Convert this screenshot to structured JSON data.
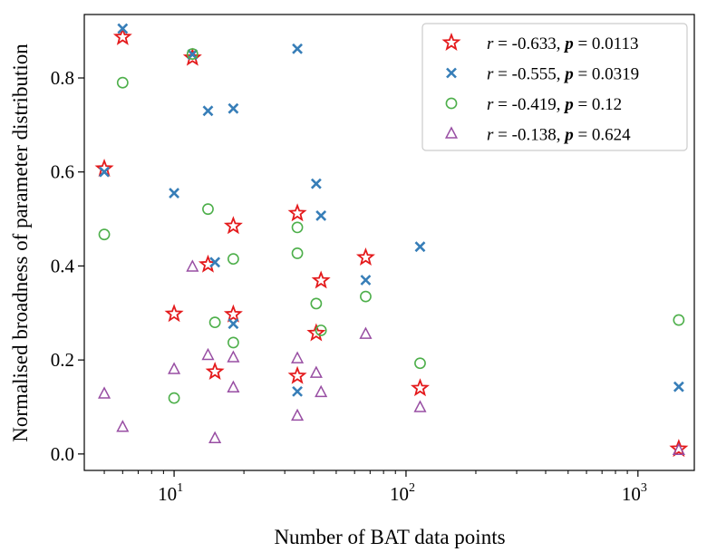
{
  "chart_data": {
    "type": "scatter",
    "xscale": "log",
    "xlabel": "Number of BAT data points",
    "ylabel": "Normalised broadness of parameter distribution",
    "xlim": [
      4.1,
      1750
    ],
    "ylim": [
      -0.035,
      0.935
    ],
    "xticks": [
      {
        "value": 10,
        "base": "10",
        "exp": "1"
      },
      {
        "value": 100,
        "base": "10",
        "exp": "2"
      },
      {
        "value": 1000,
        "base": "10",
        "exp": "3"
      }
    ],
    "yticks": [
      {
        "value": 0.0,
        "label": "0.0"
      },
      {
        "value": 0.2,
        "label": "0.2"
      },
      {
        "value": 0.4,
        "label": "0.4"
      },
      {
        "value": 0.6,
        "label": "0.6"
      },
      {
        "value": 0.8,
        "label": "0.8"
      }
    ],
    "legend_position": "top-right",
    "series": [
      {
        "name": "r = -0.633, p = 0.0113",
        "r": "-0.633",
        "p": "0.0113",
        "marker": "star",
        "color": "#e41a1c",
        "points": [
          [
            5,
            0.607
          ],
          [
            6,
            0.887
          ],
          [
            10,
            0.298
          ],
          [
            12,
            0.843
          ],
          [
            14,
            0.403
          ],
          [
            15,
            0.175
          ],
          [
            18,
            0.485
          ],
          [
            18,
            0.297
          ],
          [
            34,
            0.512
          ],
          [
            34,
            0.166
          ],
          [
            41,
            0.257
          ],
          [
            43,
            0.369
          ],
          [
            67,
            0.418
          ],
          [
            115,
            0.14
          ],
          [
            1500,
            0.011
          ]
        ]
      },
      {
        "name": "r = -0.555, p = 0.0319",
        "r": "-0.555",
        "p": "0.0319",
        "marker": "x",
        "color": "#377eb8",
        "points": [
          [
            5,
            0.6
          ],
          [
            6,
            0.905
          ],
          [
            10,
            0.555
          ],
          [
            12,
            0.85
          ],
          [
            14,
            0.73
          ],
          [
            15,
            0.408
          ],
          [
            18,
            0.735
          ],
          [
            18,
            0.277
          ],
          [
            34,
            0.862
          ],
          [
            34,
            0.133
          ],
          [
            41,
            0.575
          ],
          [
            43,
            0.507
          ],
          [
            67,
            0.37
          ],
          [
            115,
            0.441
          ],
          [
            1500,
            0.143
          ]
        ]
      },
      {
        "name": "r = -0.419, p = 0.12",
        "r": "-0.419",
        "p": "0.12",
        "marker": "circle",
        "color": "#4daf4a",
        "points": [
          [
            5,
            0.467
          ],
          [
            6,
            0.79
          ],
          [
            10,
            0.119
          ],
          [
            12,
            0.851
          ],
          [
            14,
            0.521
          ],
          [
            15,
            0.28
          ],
          [
            18,
            0.415
          ],
          [
            18,
            0.237
          ],
          [
            34,
            0.482
          ],
          [
            34,
            0.427
          ],
          [
            41,
            0.32
          ],
          [
            43,
            0.263
          ],
          [
            67,
            0.335
          ],
          [
            115,
            0.193
          ],
          [
            1500,
            0.285
          ]
        ]
      },
      {
        "name": "r = -0.138, p = 0.624",
        "r": "-0.138",
        "p": "0.624",
        "marker": "triangle",
        "color": "#984ea3",
        "points": [
          [
            5,
            0.128
          ],
          [
            6,
            0.057
          ],
          [
            10,
            0.18
          ],
          [
            12,
            0.398
          ],
          [
            14,
            0.21
          ],
          [
            15,
            0.033
          ],
          [
            18,
            0.205
          ],
          [
            18,
            0.141
          ],
          [
            34,
            0.203
          ],
          [
            34,
            0.081
          ],
          [
            41,
            0.172
          ],
          [
            43,
            0.131
          ],
          [
            67,
            0.255
          ],
          [
            115,
            0.099
          ],
          [
            1500,
            0.008
          ]
        ]
      }
    ]
  }
}
